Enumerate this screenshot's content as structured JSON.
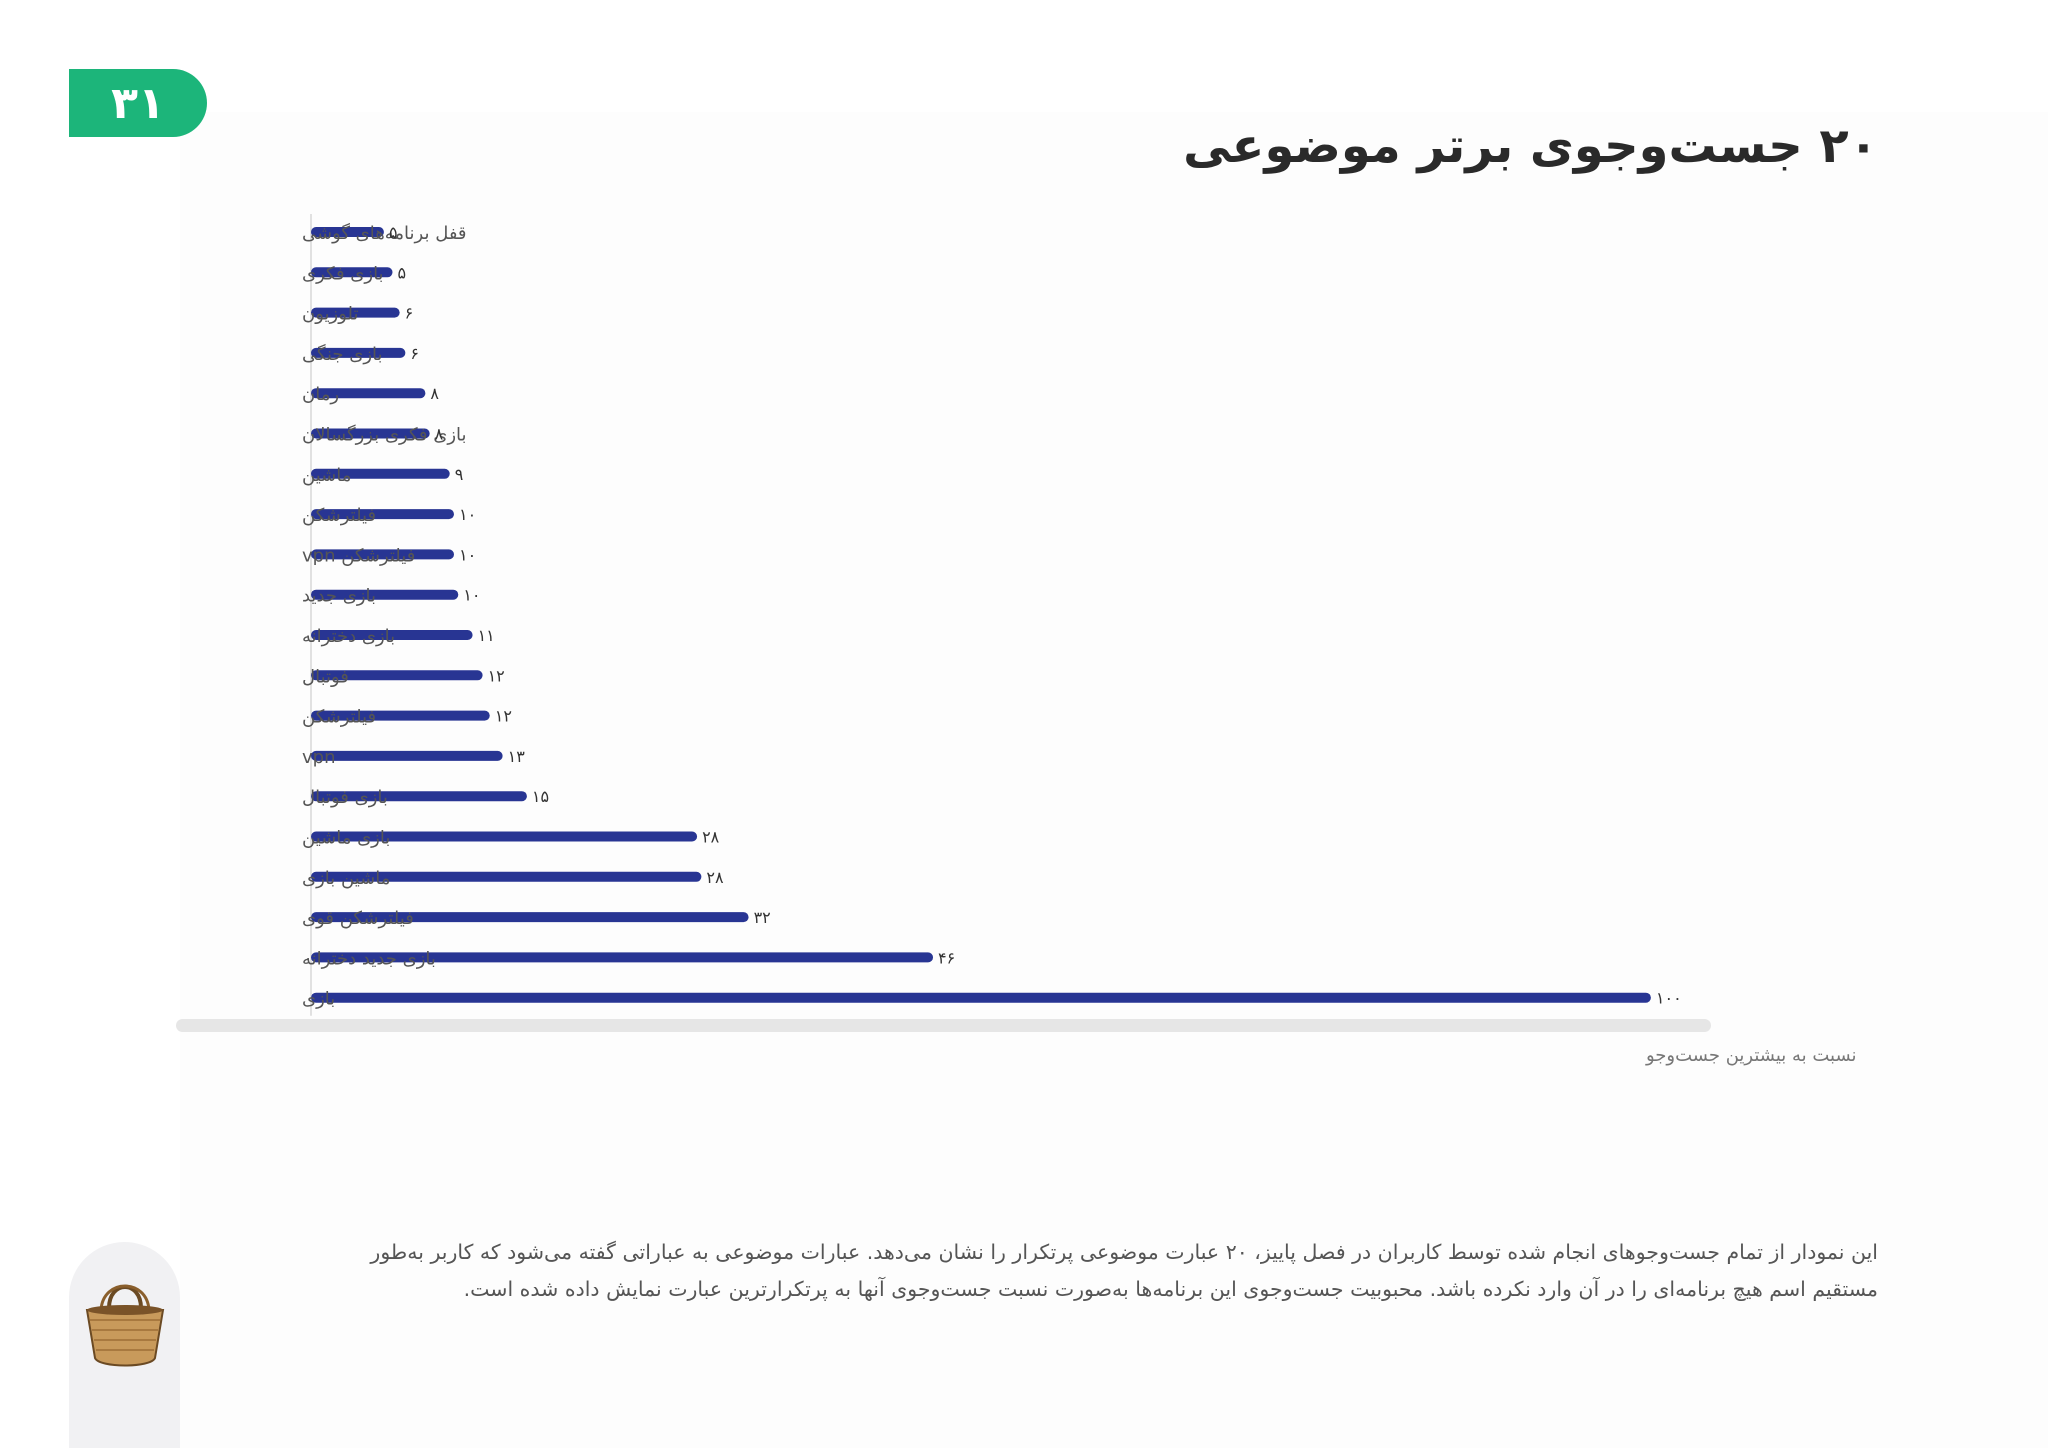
{
  "page_number": "۳۱",
  "title": "۲۰ جست‌وجوی برتر موضوعی",
  "footnote": "این نمودار از تمام جست‌وجوهای انجام شده توسط کاربران در فصل پاییز، ۲۰ عبارت موضوعی پرتکرار را نشان می‌دهد. عبارات موضوعی به عباراتی گفته می‌شود که کاربر به‌طور مستقیم اسم هیچ برنامه‌ای را در آن وارد نکرده باشد. محبوبیت جست‌وجوی این برنامه‌ها به‌صورت نسبت جست‌وجوی آنها به پرتکرارترین عبارت نمایش داده شده است.",
  "colors": {
    "bar": "#283593",
    "accent": "#1cb57a",
    "track": "#e6e6e6"
  },
  "chart_data": {
    "type": "bar",
    "orientation": "horizontal",
    "xlabel": "نسبت به بیشترین جست‌وجو",
    "xlim": [
      0,
      100
    ],
    "categories": [
      "قفل برنامه‌های گوشی",
      "بازی فکری",
      "تلوزیون",
      "بازی جنگی",
      "رمان",
      "بازی فکری بزرگسالان",
      "ماشین",
      "فیلترشکن",
      "فیلترشکن vpn",
      "بازی جدید",
      "بازی دخترانه",
      "فوتبال",
      "فیلترشکن",
      "vpn",
      "بازی فوتبال",
      "بازی ماشین",
      "ماشین بازی",
      "فیلترشکن قوی",
      "بازی جدید دخترانه",
      "بازی"
    ],
    "values": [
      4.4,
      5,
      5.5,
      5.9,
      7.3,
      7.6,
      9,
      9.3,
      9.3,
      9.6,
      10.6,
      11.3,
      11.8,
      12.7,
      14.4,
      26.3,
      26.6,
      29.9,
      42.8,
      93
    ],
    "value_labels": [
      "۵",
      "۵",
      "۶",
      "۶",
      "۸",
      "۸",
      "۹",
      "۱۰",
      "۱۰",
      "۱۰",
      "۱۱",
      "۱۲",
      "۱۲",
      "۱۳",
      "۱۵",
      "۲۸",
      "۲۸",
      "۳۲",
      "۴۶",
      "۱۰۰"
    ]
  }
}
